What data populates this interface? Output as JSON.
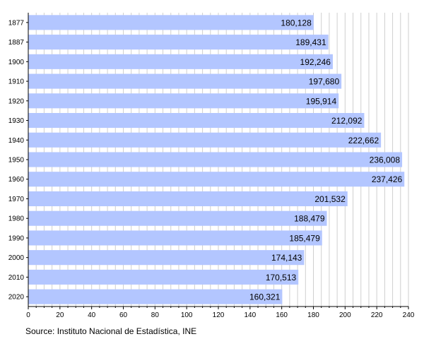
{
  "chart_data": {
    "type": "bar",
    "orientation": "horizontal",
    "categories": [
      "1877",
      "1887",
      "1900",
      "1910",
      "1920",
      "1930",
      "1940",
      "1950",
      "1960",
      "1970",
      "1980",
      "1990",
      "2000",
      "2010",
      "2020"
    ],
    "values": [
      180128,
      189431,
      192246,
      197680,
      195914,
      212092,
      222662,
      236008,
      237426,
      201532,
      188479,
      185479,
      174143,
      170513,
      160321
    ],
    "value_labels": [
      "180,128",
      "189,431",
      "192,246",
      "197,680",
      "195,914",
      "212,092",
      "222,662",
      "236,008",
      "237,426",
      "201,532",
      "188,479",
      "185,479",
      "174,143",
      "170,513",
      "160,321"
    ],
    "x_ticks": [
      "0",
      "20",
      "40",
      "60",
      "80",
      "100",
      "120",
      "140",
      "160",
      "180",
      "200",
      "220",
      "240"
    ],
    "xlim": [
      0,
      240000
    ],
    "grid": true,
    "bar_color": "#b3c6ff"
  },
  "source": "Source: Instituto Nacional de Estadística, INE"
}
